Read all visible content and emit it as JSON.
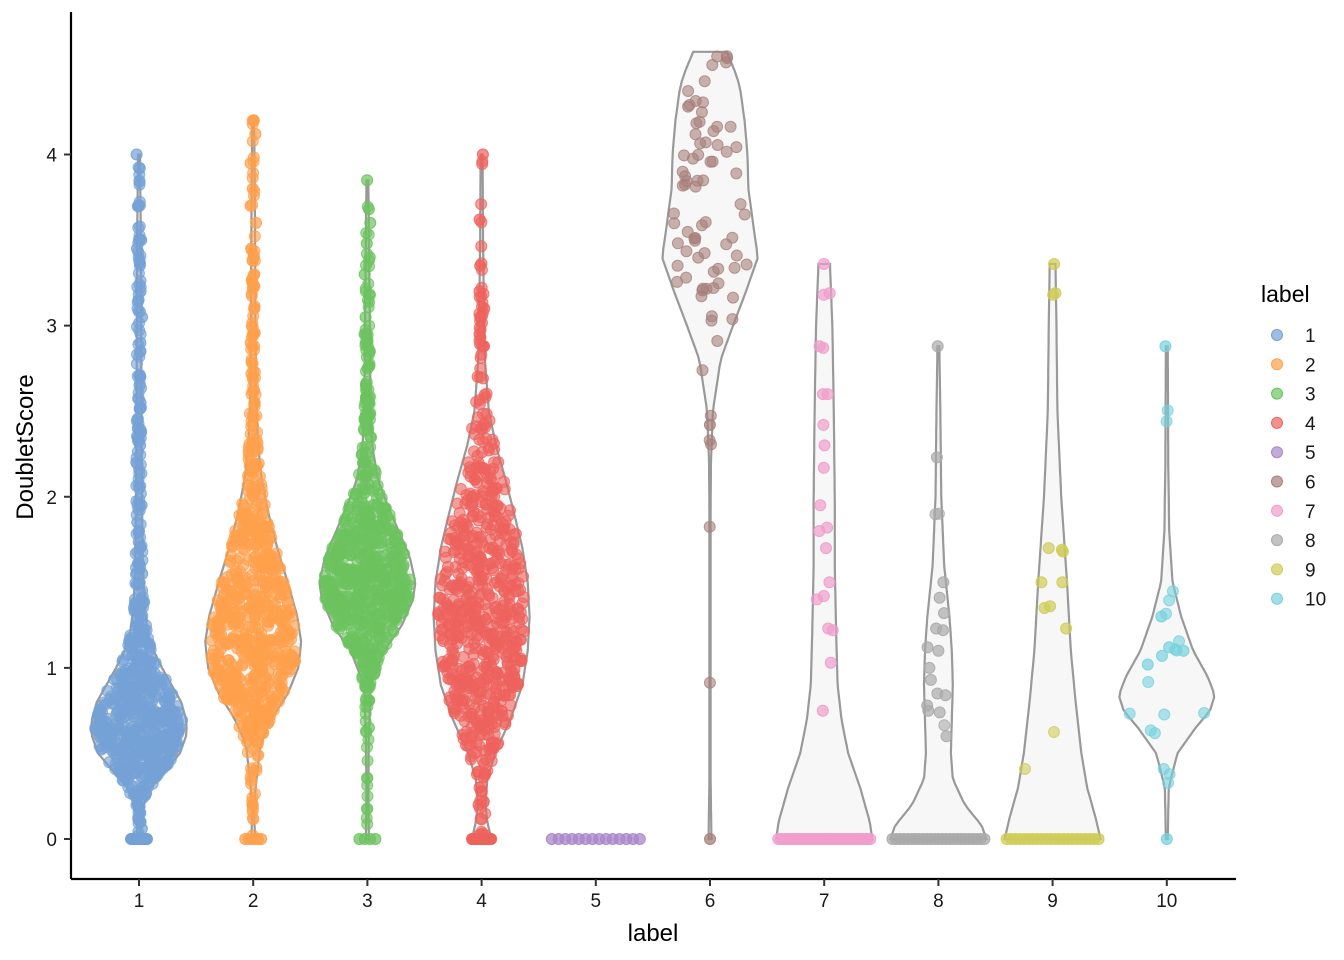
{
  "chart_data": {
    "type": "violin",
    "xlabel": "label",
    "ylabel": "DoubletScore",
    "categories": [
      "1",
      "2",
      "3",
      "4",
      "5",
      "6",
      "7",
      "8",
      "9",
      "10"
    ],
    "ylim": [
      -0.22,
      4.85
    ],
    "yticks": [
      0,
      1,
      2,
      3,
      4
    ],
    "legend": {
      "title": "label",
      "position": "right"
    },
    "grid": false,
    "series": [
      {
        "label": "1",
        "color": "#75A1D5",
        "min": 0,
        "max": 4.0,
        "median": 0.68,
        "n_approx": 2000,
        "zeros": 40,
        "outliers": [
          4.0,
          3.92,
          3.7,
          3.5,
          3.45,
          3.38,
          3.2,
          3.05,
          2.9,
          2.85,
          2.7,
          2.55,
          2.4,
          2.3,
          2.2,
          2.05,
          1.95,
          1.85,
          1.8,
          1.7,
          1.6,
          1.55,
          0.15,
          0.1,
          0.06
        ],
        "profile": [
          [
            0,
            0.05
          ],
          [
            0.1,
            0.03
          ],
          [
            0.2,
            0.1
          ],
          [
            0.3,
            0.25
          ],
          [
            0.4,
            0.55
          ],
          [
            0.5,
            0.85
          ],
          [
            0.6,
            0.98
          ],
          [
            0.68,
            1.0
          ],
          [
            0.8,
            0.88
          ],
          [
            0.9,
            0.68
          ],
          [
            1.0,
            0.48
          ],
          [
            1.1,
            0.3
          ],
          [
            1.2,
            0.19
          ],
          [
            1.3,
            0.14
          ],
          [
            1.45,
            0.1
          ],
          [
            1.6,
            0.08
          ],
          [
            1.8,
            0.07
          ],
          [
            2.1,
            0.06
          ],
          [
            2.5,
            0.05
          ],
          [
            3.0,
            0.045
          ],
          [
            3.5,
            0.04
          ],
          [
            4.0,
            0.02
          ]
        ]
      },
      {
        "label": "2",
        "color": "#FFA04C",
        "min": 0,
        "max": 4.2,
        "median": 1.18,
        "n_approx": 2500,
        "zeros": 6,
        "outliers": [
          4.2,
          4.12,
          3.95,
          3.8,
          3.7,
          3.6,
          3.45,
          3.3,
          3.1,
          2.95,
          2.9,
          2.8,
          2.7,
          2.62,
          2.55,
          0.68,
          0.62
        ],
        "profile": [
          [
            0,
            0.04
          ],
          [
            0.15,
            0.02
          ],
          [
            0.3,
            0.05
          ],
          [
            0.55,
            0.15
          ],
          [
            0.7,
            0.38
          ],
          [
            0.85,
            0.72
          ],
          [
            1.0,
            0.94
          ],
          [
            1.15,
            1.0
          ],
          [
            1.3,
            0.92
          ],
          [
            1.5,
            0.72
          ],
          [
            1.7,
            0.5
          ],
          [
            1.9,
            0.32
          ],
          [
            2.1,
            0.18
          ],
          [
            2.3,
            0.1
          ],
          [
            2.6,
            0.06
          ],
          [
            3.0,
            0.045
          ],
          [
            3.5,
            0.04
          ],
          [
            4.2,
            0.02
          ]
        ]
      },
      {
        "label": "3",
        "color": "#6CC35F",
        "min": 0,
        "max": 3.85,
        "median": 1.48,
        "n_approx": 2000,
        "zeros": 4,
        "outliers": [
          3.85,
          3.68,
          3.6,
          3.48,
          3.4,
          3.3,
          3.18,
          3.05,
          2.95,
          2.85,
          2.75,
          2.65,
          2.55,
          2.45,
          2.35,
          2.25,
          0.98,
          0.95,
          0.9,
          0.65
        ],
        "profile": [
          [
            0,
            0.03
          ],
          [
            0.3,
            0.02
          ],
          [
            0.6,
            0.03
          ],
          [
            0.9,
            0.07
          ],
          [
            1.1,
            0.35
          ],
          [
            1.25,
            0.72
          ],
          [
            1.4,
            0.95
          ],
          [
            1.5,
            1.0
          ],
          [
            1.65,
            0.88
          ],
          [
            1.8,
            0.65
          ],
          [
            1.95,
            0.42
          ],
          [
            2.1,
            0.22
          ],
          [
            2.3,
            0.1
          ],
          [
            2.6,
            0.06
          ],
          [
            3.0,
            0.05
          ],
          [
            3.85,
            0.02
          ]
        ]
      },
      {
        "label": "4",
        "color": "#EE635D",
        "min": 0,
        "max": 4.0,
        "median": 1.35,
        "n_approx": 1500,
        "zeros": 40,
        "outliers": [
          4.0,
          3.62,
          3.35,
          3.2,
          3.1,
          3.05,
          2.95,
          2.88,
          0.38,
          0.28,
          0.2
        ],
        "profile": [
          [
            0,
            0.2
          ],
          [
            0.1,
            0.12
          ],
          [
            0.2,
            0.08
          ],
          [
            0.35,
            0.12
          ],
          [
            0.5,
            0.28
          ],
          [
            0.7,
            0.6
          ],
          [
            0.9,
            0.85
          ],
          [
            1.1,
            0.96
          ],
          [
            1.3,
            1.0
          ],
          [
            1.5,
            0.96
          ],
          [
            1.7,
            0.85
          ],
          [
            1.9,
            0.68
          ],
          [
            2.1,
            0.5
          ],
          [
            2.3,
            0.3
          ],
          [
            2.5,
            0.15
          ],
          [
            2.8,
            0.07
          ],
          [
            3.1,
            0.05
          ],
          [
            3.5,
            0.03
          ],
          [
            4.0,
            0.02
          ]
        ]
      },
      {
        "label": "5",
        "color": "#A886C9",
        "min": 0,
        "max": 0,
        "median": 0,
        "n_approx": 14,
        "zeros": 14,
        "outliers": [],
        "profile": []
      },
      {
        "label": "6",
        "color": "#A77F79",
        "min": 0,
        "max": 4.6,
        "median": 3.6,
        "n_approx": 80,
        "zeros": 1,
        "outliers": [
          2.42
        ],
        "profile": [
          [
            0,
            0.03
          ],
          [
            0.4,
            0.01
          ],
          [
            1.0,
            0.01
          ],
          [
            1.8,
            0.01
          ],
          [
            2.2,
            0.02
          ],
          [
            2.5,
            0.06
          ],
          [
            2.8,
            0.22
          ],
          [
            3.0,
            0.48
          ],
          [
            3.2,
            0.75
          ],
          [
            3.4,
            1.0
          ],
          [
            3.55,
            0.92
          ],
          [
            3.8,
            0.8
          ],
          [
            4.0,
            0.78
          ],
          [
            4.2,
            0.72
          ],
          [
            4.4,
            0.62
          ],
          [
            4.5,
            0.5
          ],
          [
            4.6,
            0.35
          ]
        ]
      },
      {
        "label": "7",
        "color": "#F09DCB",
        "min": 0,
        "max": 3.36,
        "median": 0,
        "n_approx": 60,
        "zeros": 40,
        "outliers": [
          3.36,
          3.19,
          3.18,
          2.88,
          2.87,
          2.6,
          2.6,
          2.42,
          2.3,
          2.17,
          1.95,
          1.82,
          1.8,
          1.7,
          1.5,
          1.42,
          1.4,
          1.23,
          1.22,
          1.03,
          0.75
        ],
        "profile": [
          [
            0,
            1.0
          ],
          [
            0.1,
            0.95
          ],
          [
            0.3,
            0.75
          ],
          [
            0.5,
            0.5
          ],
          [
            0.7,
            0.36
          ],
          [
            0.9,
            0.28
          ],
          [
            1.2,
            0.25
          ],
          [
            1.6,
            0.22
          ],
          [
            2.0,
            0.22
          ],
          [
            2.5,
            0.2
          ],
          [
            3.0,
            0.17
          ],
          [
            3.36,
            0.12
          ]
        ]
      },
      {
        "label": "8",
        "color": "#AAAAAA",
        "min": 0,
        "max": 2.88,
        "median": 0,
        "n_approx": 45,
        "zeros": 25,
        "outliers": [
          2.88,
          2.23,
          1.5,
          1.41,
          1.32,
          1.23,
          1.22,
          1.12,
          1.1,
          1.0,
          0.93,
          0.85,
          0.84,
          0.78,
          0.75,
          0.74,
          0.6
        ],
        "profile": [
          [
            0,
            1.0
          ],
          [
            0.08,
            0.9
          ],
          [
            0.2,
            0.55
          ],
          [
            0.35,
            0.3
          ],
          [
            0.5,
            0.26
          ],
          [
            0.7,
            0.28
          ],
          [
            0.9,
            0.3
          ],
          [
            1.1,
            0.28
          ],
          [
            1.3,
            0.23
          ],
          [
            1.6,
            0.12
          ],
          [
            2.0,
            0.06
          ],
          [
            2.5,
            0.04
          ],
          [
            2.88,
            0.02
          ]
        ]
      },
      {
        "label": "9",
        "color": "#CFCC58",
        "min": 0,
        "max": 3.36,
        "median": 0,
        "n_approx": 35,
        "zeros": 22,
        "outliers": [
          3.36,
          3.19,
          3.18,
          1.7,
          1.69,
          1.68,
          1.5,
          1.5,
          1.36,
          1.35,
          1.23
        ],
        "profile": [
          [
            0,
            1.0
          ],
          [
            0.12,
            0.9
          ],
          [
            0.3,
            0.72
          ],
          [
            0.5,
            0.6
          ],
          [
            0.8,
            0.48
          ],
          [
            1.1,
            0.38
          ],
          [
            1.5,
            0.3
          ],
          [
            2.0,
            0.18
          ],
          [
            2.5,
            0.1
          ],
          [
            3.0,
            0.08
          ],
          [
            3.36,
            0.06
          ]
        ]
      },
      {
        "label": "10",
        "color": "#77D1DD",
        "min": 0,
        "max": 2.88,
        "median": 0.84,
        "n_approx": 24,
        "zeros": 1,
        "outliers": [
          2.88,
          1.3,
          1.12,
          1.1,
          1.07,
          1.02
        ],
        "profile": [
          [
            0,
            0.02
          ],
          [
            0.3,
            0.04
          ],
          [
            0.5,
            0.22
          ],
          [
            0.65,
            0.6
          ],
          [
            0.75,
            0.9
          ],
          [
            0.84,
            1.0
          ],
          [
            0.95,
            0.85
          ],
          [
            1.1,
            0.55
          ],
          [
            1.3,
            0.3
          ],
          [
            1.5,
            0.12
          ],
          [
            1.8,
            0.05
          ],
          [
            2.2,
            0.03
          ],
          [
            2.88,
            0.02
          ]
        ]
      }
    ]
  }
}
